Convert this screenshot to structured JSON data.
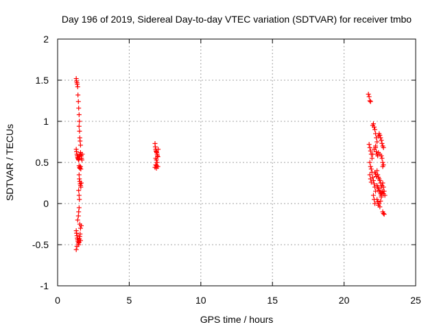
{
  "chart_data": {
    "type": "scatter",
    "title": "Day 196 of 2019, Sidereal Day-to-day VTEC variation (SDTVAR) for receiver tmbo",
    "xlabel": "GPS time / hours",
    "ylabel": "SDTVAR / TECUs",
    "xlim": [
      0,
      25
    ],
    "ylim": [
      -1,
      2
    ],
    "xticks": [
      0,
      5,
      10,
      15,
      20,
      25
    ],
    "yticks": [
      -1,
      -0.5,
      0,
      0.5,
      1,
      1.5,
      2
    ],
    "xtick_labels": [
      "0",
      "5",
      "10",
      "15",
      "20",
      "25"
    ],
    "ytick_labels": [
      "-1",
      "-0.5",
      "0",
      "0.5",
      "1",
      "1.5",
      "2"
    ],
    "grid": true,
    "marker": "+",
    "color": "#ff0000",
    "series": [
      {
        "name": "tmbo",
        "points": [
          [
            1.3,
            1.52
          ],
          [
            1.32,
            1.49
          ],
          [
            1.35,
            1.47
          ],
          [
            1.37,
            1.45
          ],
          [
            1.4,
            1.42
          ],
          [
            1.42,
            1.32
          ],
          [
            1.45,
            1.24
          ],
          [
            1.47,
            1.16
          ],
          [
            1.5,
            1.08
          ],
          [
            1.52,
            1.0
          ],
          [
            1.5,
            0.94
          ],
          [
            1.53,
            0.88
          ],
          [
            1.55,
            0.8
          ],
          [
            1.57,
            0.76
          ],
          [
            1.6,
            0.71
          ],
          [
            1.3,
            0.66
          ],
          [
            1.32,
            0.63
          ],
          [
            1.35,
            0.6
          ],
          [
            1.37,
            0.58
          ],
          [
            1.4,
            0.56
          ],
          [
            1.42,
            0.55
          ],
          [
            1.45,
            0.54
          ],
          [
            1.47,
            0.53
          ],
          [
            1.5,
            0.55
          ],
          [
            1.52,
            0.57
          ],
          [
            1.55,
            0.59
          ],
          [
            1.57,
            0.6
          ],
          [
            1.6,
            0.62
          ],
          [
            1.62,
            0.6
          ],
          [
            1.65,
            0.58
          ],
          [
            1.67,
            0.55
          ],
          [
            1.7,
            0.53
          ],
          [
            1.72,
            0.6
          ],
          [
            1.5,
            0.46
          ],
          [
            1.53,
            0.44
          ],
          [
            1.55,
            0.43
          ],
          [
            1.6,
            0.45
          ],
          [
            1.62,
            0.42
          ],
          [
            1.5,
            0.35
          ],
          [
            1.52,
            0.3
          ],
          [
            1.55,
            0.27
          ],
          [
            1.57,
            0.24
          ],
          [
            1.6,
            0.22
          ],
          [
            1.62,
            0.2
          ],
          [
            1.65,
            0.25
          ],
          [
            1.47,
            0.16
          ],
          [
            1.5,
            0.1
          ],
          [
            1.52,
            0.05
          ],
          [
            1.5,
            -0.05
          ],
          [
            1.47,
            -0.1
          ],
          [
            1.45,
            -0.15
          ],
          [
            1.4,
            -0.2
          ],
          [
            1.55,
            -0.25
          ],
          [
            1.6,
            -0.3
          ],
          [
            1.65,
            -0.27
          ],
          [
            1.3,
            -0.33
          ],
          [
            1.32,
            -0.36
          ],
          [
            1.35,
            -0.39
          ],
          [
            1.37,
            -0.42
          ],
          [
            1.4,
            -0.44
          ],
          [
            1.42,
            -0.46
          ],
          [
            1.45,
            -0.48
          ],
          [
            1.47,
            -0.5
          ],
          [
            1.5,
            -0.47
          ],
          [
            1.52,
            -0.43
          ],
          [
            1.55,
            -0.4
          ],
          [
            1.57,
            -0.37
          ],
          [
            1.35,
            -0.52
          ],
          [
            1.3,
            -0.56
          ],
          [
            1.6,
            -0.45
          ],
          [
            6.8,
            0.73
          ],
          [
            6.82,
            0.69
          ],
          [
            6.85,
            0.66
          ],
          [
            6.87,
            0.64
          ],
          [
            6.9,
            0.63
          ],
          [
            6.92,
            0.62
          ],
          [
            6.95,
            0.6
          ],
          [
            6.97,
            0.58
          ],
          [
            7.0,
            0.57
          ],
          [
            6.85,
            0.55
          ],
          [
            6.9,
            0.53
          ],
          [
            6.95,
            0.5
          ],
          [
            6.85,
            0.47
          ],
          [
            6.9,
            0.46
          ],
          [
            7.0,
            0.45
          ],
          [
            6.8,
            0.44
          ],
          [
            6.9,
            0.43
          ],
          [
            7.02,
            0.66
          ],
          [
            21.7,
            1.33
          ],
          [
            21.75,
            1.3
          ],
          [
            21.8,
            1.25
          ],
          [
            21.85,
            1.24
          ],
          [
            21.75,
            0.72
          ],
          [
            21.8,
            0.68
          ],
          [
            21.85,
            0.64
          ],
          [
            21.9,
            0.6
          ],
          [
            21.95,
            0.55
          ],
          [
            21.8,
            0.5
          ],
          [
            21.85,
            0.45
          ],
          [
            21.9,
            0.42
          ],
          [
            21.95,
            0.38
          ],
          [
            21.8,
            0.35
          ],
          [
            21.85,
            0.3
          ],
          [
            21.9,
            0.26
          ],
          [
            22.0,
            0.32
          ],
          [
            22.05,
            0.28
          ],
          [
            22.1,
            0.24
          ],
          [
            22.15,
            0.2
          ],
          [
            22.2,
            0.15
          ],
          [
            22.05,
            0.1
          ],
          [
            22.1,
            0.05
          ],
          [
            22.15,
            0.0
          ],
          [
            22.0,
            0.95
          ],
          [
            22.05,
            0.97
          ],
          [
            22.1,
            0.93
          ],
          [
            22.15,
            0.9
          ],
          [
            22.2,
            0.85
          ],
          [
            22.25,
            0.8
          ],
          [
            22.3,
            0.75
          ],
          [
            22.2,
            0.68
          ],
          [
            22.25,
            0.63
          ],
          [
            22.3,
            0.6
          ],
          [
            22.35,
            0.58
          ],
          [
            22.4,
            0.82
          ],
          [
            22.45,
            0.85
          ],
          [
            22.5,
            0.83
          ],
          [
            22.55,
            0.8
          ],
          [
            22.6,
            0.77
          ],
          [
            22.65,
            0.73
          ],
          [
            22.7,
            0.7
          ],
          [
            22.75,
            0.68
          ],
          [
            22.6,
            0.58
          ],
          [
            22.65,
            0.55
          ],
          [
            22.7,
            0.5
          ],
          [
            22.75,
            0.47
          ],
          [
            22.7,
            0.45
          ],
          [
            22.3,
            0.4
          ],
          [
            22.35,
            0.35
          ],
          [
            22.4,
            0.32
          ],
          [
            22.45,
            0.3
          ],
          [
            22.5,
            0.28
          ],
          [
            22.55,
            0.25
          ],
          [
            22.3,
            0.22
          ],
          [
            22.35,
            0.2
          ],
          [
            22.4,
            0.18
          ],
          [
            22.45,
            0.16
          ],
          [
            22.5,
            0.14
          ],
          [
            22.55,
            0.12
          ],
          [
            22.6,
            0.1
          ],
          [
            22.65,
            0.13
          ],
          [
            22.7,
            0.15
          ],
          [
            22.75,
            0.12
          ],
          [
            22.3,
            0.05
          ],
          [
            22.35,
            0.02
          ],
          [
            22.4,
            -0.02
          ],
          [
            22.45,
            0.0
          ],
          [
            22.5,
            -0.04
          ],
          [
            22.55,
            0.03
          ],
          [
            22.6,
            0.08
          ],
          [
            22.7,
            -0.1
          ],
          [
            22.75,
            -0.12
          ],
          [
            22.8,
            -0.13
          ],
          [
            22.6,
            0.2
          ],
          [
            22.65,
            0.22
          ],
          [
            22.7,
            0.25
          ],
          [
            22.75,
            0.2
          ],
          [
            22.8,
            0.15
          ],
          [
            22.85,
            0.1
          ],
          [
            22.15,
            0.38
          ],
          [
            22.2,
            0.36
          ],
          [
            22.25,
            0.33
          ],
          [
            22.0,
            0.6
          ],
          [
            22.1,
            0.66
          ],
          [
            22.2,
            0.7
          ],
          [
            22.4,
            0.62
          ],
          [
            22.5,
            0.6
          ]
        ]
      }
    ]
  }
}
